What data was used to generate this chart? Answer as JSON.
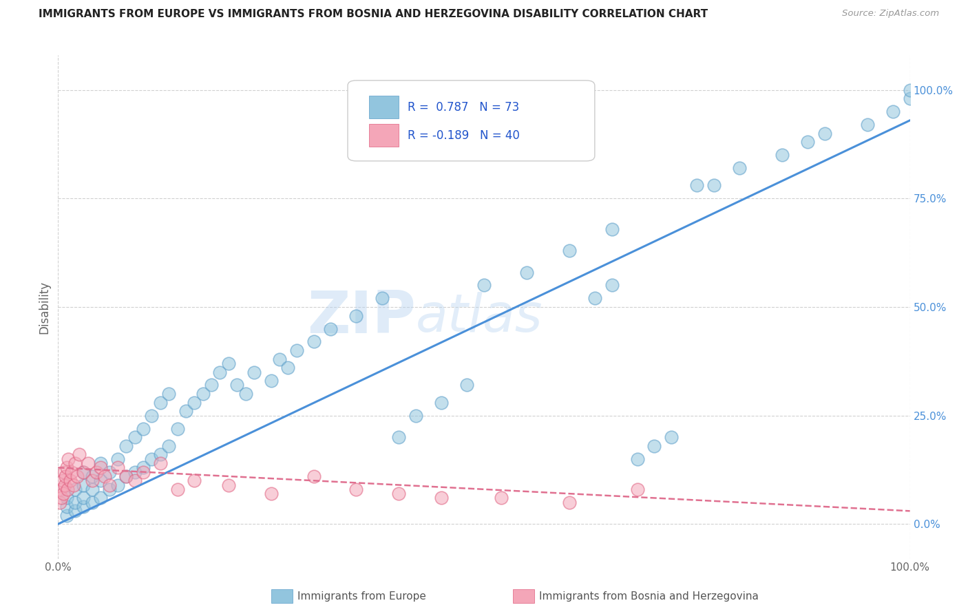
{
  "title": "IMMIGRANTS FROM EUROPE VS IMMIGRANTS FROM BOSNIA AND HERZEGOVINA DISABILITY CORRELATION CHART",
  "source": "Source: ZipAtlas.com",
  "ylabel": "Disability",
  "xlim": [
    0,
    100
  ],
  "ylim": [
    -8,
    108
  ],
  "watermark_zip": "ZIP",
  "watermark_atlas": "atlas",
  "legend_r1": "R =  0.787",
  "legend_n1": "N = 73",
  "legend_r2": "R = -0.189",
  "legend_n2": "N = 40",
  "blue_color": "#92c5de",
  "blue_edge": "#5a9dc8",
  "pink_color": "#f4a6b8",
  "pink_edge": "#e06080",
  "line_blue": "#4a90d9",
  "line_pink": "#e07090",
  "grid_color": "#d0d0d0",
  "title_color": "#222222",
  "axis_label_color": "#666666",
  "legend_value_color": "#2255cc",
  "right_axis_color": "#4a90d9",
  "blue_scatter_x": [
    1,
    1,
    1,
    2,
    2,
    2,
    3,
    3,
    3,
    3,
    4,
    4,
    4,
    5,
    5,
    5,
    6,
    6,
    7,
    7,
    8,
    8,
    9,
    9,
    10,
    10,
    11,
    11,
    12,
    12,
    13,
    13,
    14,
    15,
    16,
    17,
    18,
    19,
    20,
    21,
    22,
    23,
    25,
    26,
    27,
    28,
    30,
    32,
    35,
    38,
    40,
    42,
    45,
    48,
    50,
    55,
    60,
    65,
    68,
    70,
    72,
    75,
    77,
    80,
    85,
    88,
    90,
    95,
    98,
    100,
    100,
    65,
    63
  ],
  "blue_scatter_y": [
    2,
    4,
    6,
    3,
    5,
    8,
    4,
    6,
    9,
    12,
    5,
    8,
    11,
    6,
    10,
    14,
    8,
    12,
    9,
    15,
    11,
    18,
    12,
    20,
    13,
    22,
    15,
    25,
    16,
    28,
    18,
    30,
    22,
    26,
    28,
    30,
    32,
    35,
    37,
    32,
    30,
    35,
    33,
    38,
    36,
    40,
    42,
    45,
    48,
    52,
    20,
    25,
    28,
    32,
    55,
    58,
    63,
    68,
    15,
    18,
    20,
    78,
    78,
    82,
    85,
    88,
    90,
    92,
    95,
    98,
    100,
    55,
    52
  ],
  "pink_scatter_x": [
    0.2,
    0.3,
    0.4,
    0.5,
    0.6,
    0.7,
    0.8,
    0.9,
    1.0,
    1.1,
    1.2,
    1.4,
    1.6,
    1.8,
    2.0,
    2.2,
    2.5,
    3.0,
    3.5,
    4.0,
    4.5,
    5.0,
    5.5,
    6.0,
    7.0,
    8.0,
    9.0,
    10.0,
    12.0,
    14.0,
    16.0,
    20.0,
    25.0,
    30.0,
    35.0,
    40.0,
    45.0,
    52.0,
    60.0,
    68.0
  ],
  "pink_scatter_y": [
    5,
    8,
    6,
    10,
    7,
    12,
    9,
    11,
    13,
    8,
    15,
    10,
    12,
    9,
    14,
    11,
    16,
    12,
    14,
    10,
    12,
    13,
    11,
    9,
    13,
    11,
    10,
    12,
    14,
    8,
    10,
    9,
    7,
    11,
    8,
    7,
    6,
    6,
    5,
    8
  ],
  "blue_line_x0": 0,
  "blue_line_y0": 0,
  "blue_line_x1": 100,
  "blue_line_y1": 93,
  "pink_line_x0": 0,
  "pink_line_y0": 13,
  "pink_line_x1": 100,
  "pink_line_y1": 3
}
